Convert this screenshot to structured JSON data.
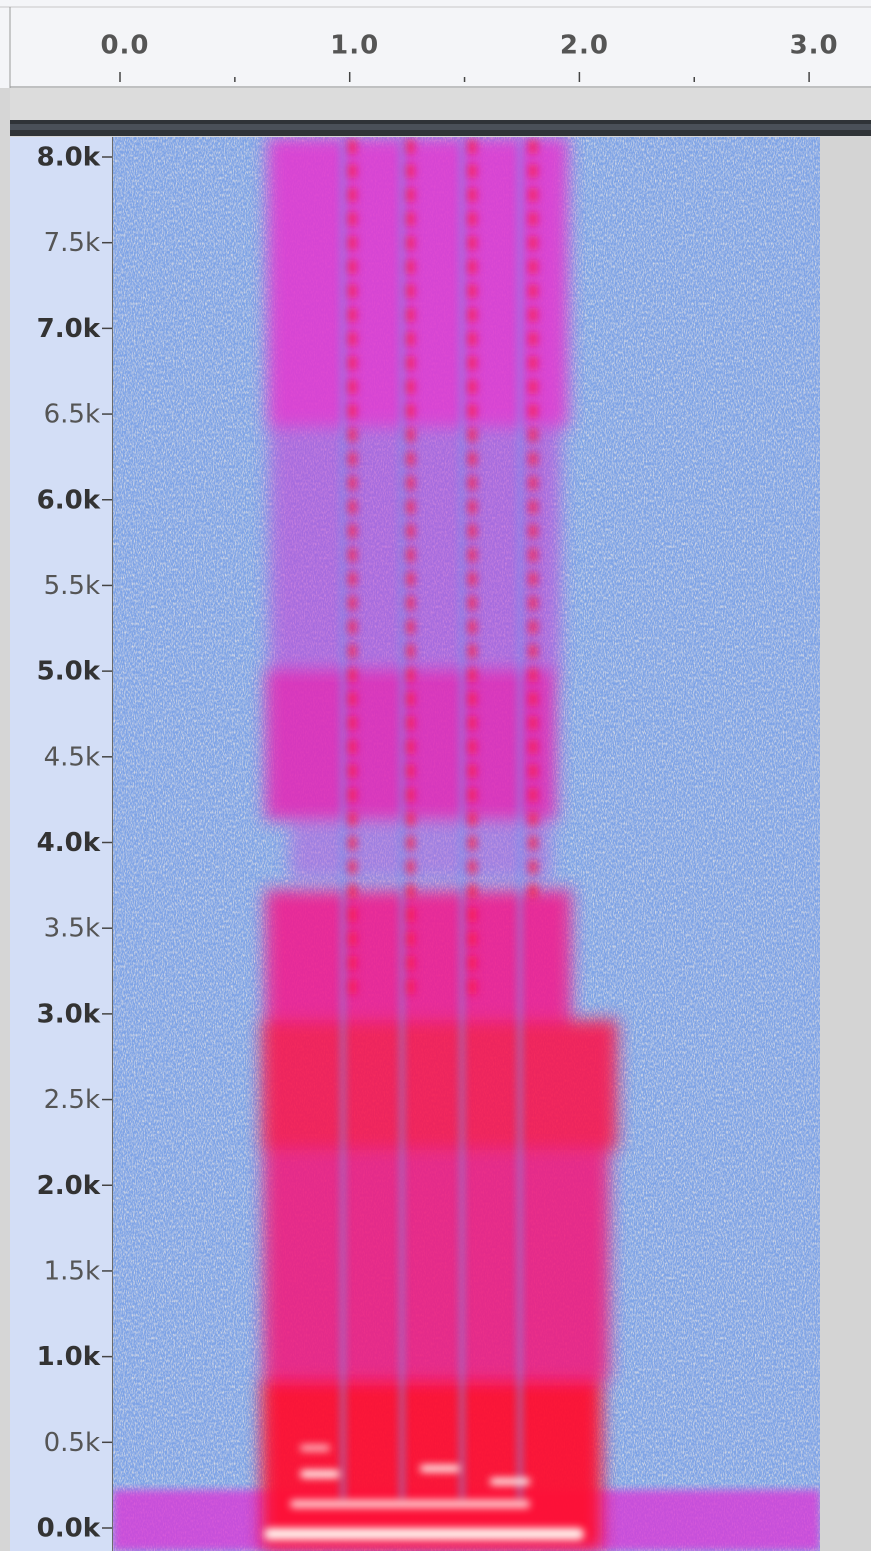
{
  "timeline": {
    "labels": [
      "0.0",
      "1.0",
      "2.0",
      "3.0"
    ]
  },
  "frequency_axis": {
    "labels": [
      "8.0k",
      "7.5k",
      "7.0k",
      "6.5k",
      "6.0k",
      "5.5k",
      "5.0k",
      "4.5k",
      "4.0k",
      "3.5k",
      "3.0k",
      "2.5k",
      "2.0k",
      "1.5k",
      "1.0k",
      "0.5k",
      "0.0k"
    ]
  }
}
